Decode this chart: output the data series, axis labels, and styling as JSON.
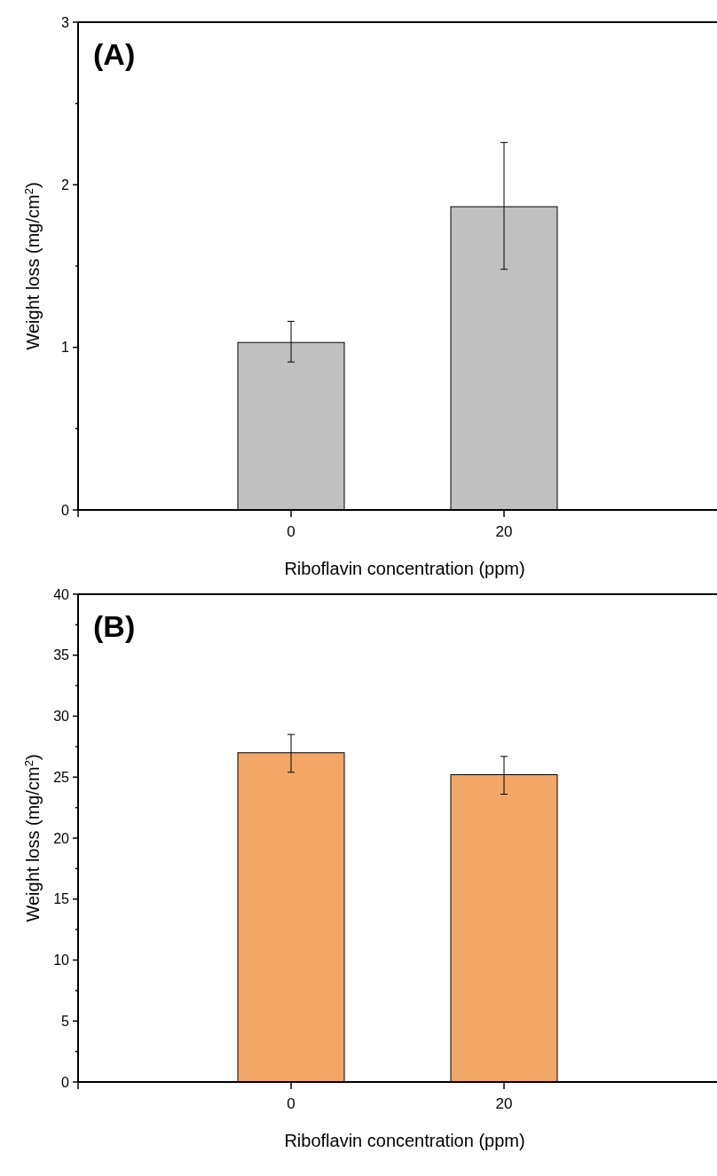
{
  "chart_data": [
    {
      "type": "bar",
      "title": "(A)",
      "xlabel": "Riboflavin concentration (ppm)",
      "ylabel": "Weight loss (mg/cm$^{2}$)",
      "categories": [
        "0",
        "20"
      ],
      "series": [
        {
          "color": "#c0c0c0",
          "values": [
            1.03,
            1.865
          ],
          "errors": [
            [
              0.91,
              1.16
            ],
            [
              1.48,
              2.26
            ]
          ]
        }
      ],
      "ylim": [
        0,
        3
      ],
      "yticks": [
        0,
        {
          "value": 0.5,
          "label": null
        },
        1,
        {
          "value": 1.5,
          "label": null
        },
        2,
        {
          "value": 2.5,
          "label": null
        },
        3
      ]
    },
    {
      "type": "bar",
      "title": "(B)",
      "xlabel": "Riboflavin concentration (ppm)",
      "ylabel": "Weight loss (mg/cm$^{2}$)",
      "categories": [
        "0",
        "20"
      ],
      "series": [
        {
          "color": "#f2a766",
          "values": [
            27.0,
            25.2
          ],
          "errors": [
            [
              25.4,
              28.5
            ],
            [
              23.6,
              26.7
            ]
          ]
        }
      ],
      "ylim": [
        0,
        40
      ],
      "yticks": [
        0,
        {
          "value": 2.5,
          "label": null
        },
        5,
        {
          "value": 7.5,
          "label": null
        },
        10,
        {
          "value": 12.5,
          "label": null
        },
        15,
        {
          "value": 17.5,
          "label": null
        },
        20,
        {
          "value": 22.5,
          "label": null
        },
        25,
        {
          "value": 27.5,
          "label": null
        },
        30,
        {
          "value": 32.5,
          "label": null
        },
        35,
        {
          "value": 37.5,
          "label": null
        },
        40
      ]
    }
  ]
}
